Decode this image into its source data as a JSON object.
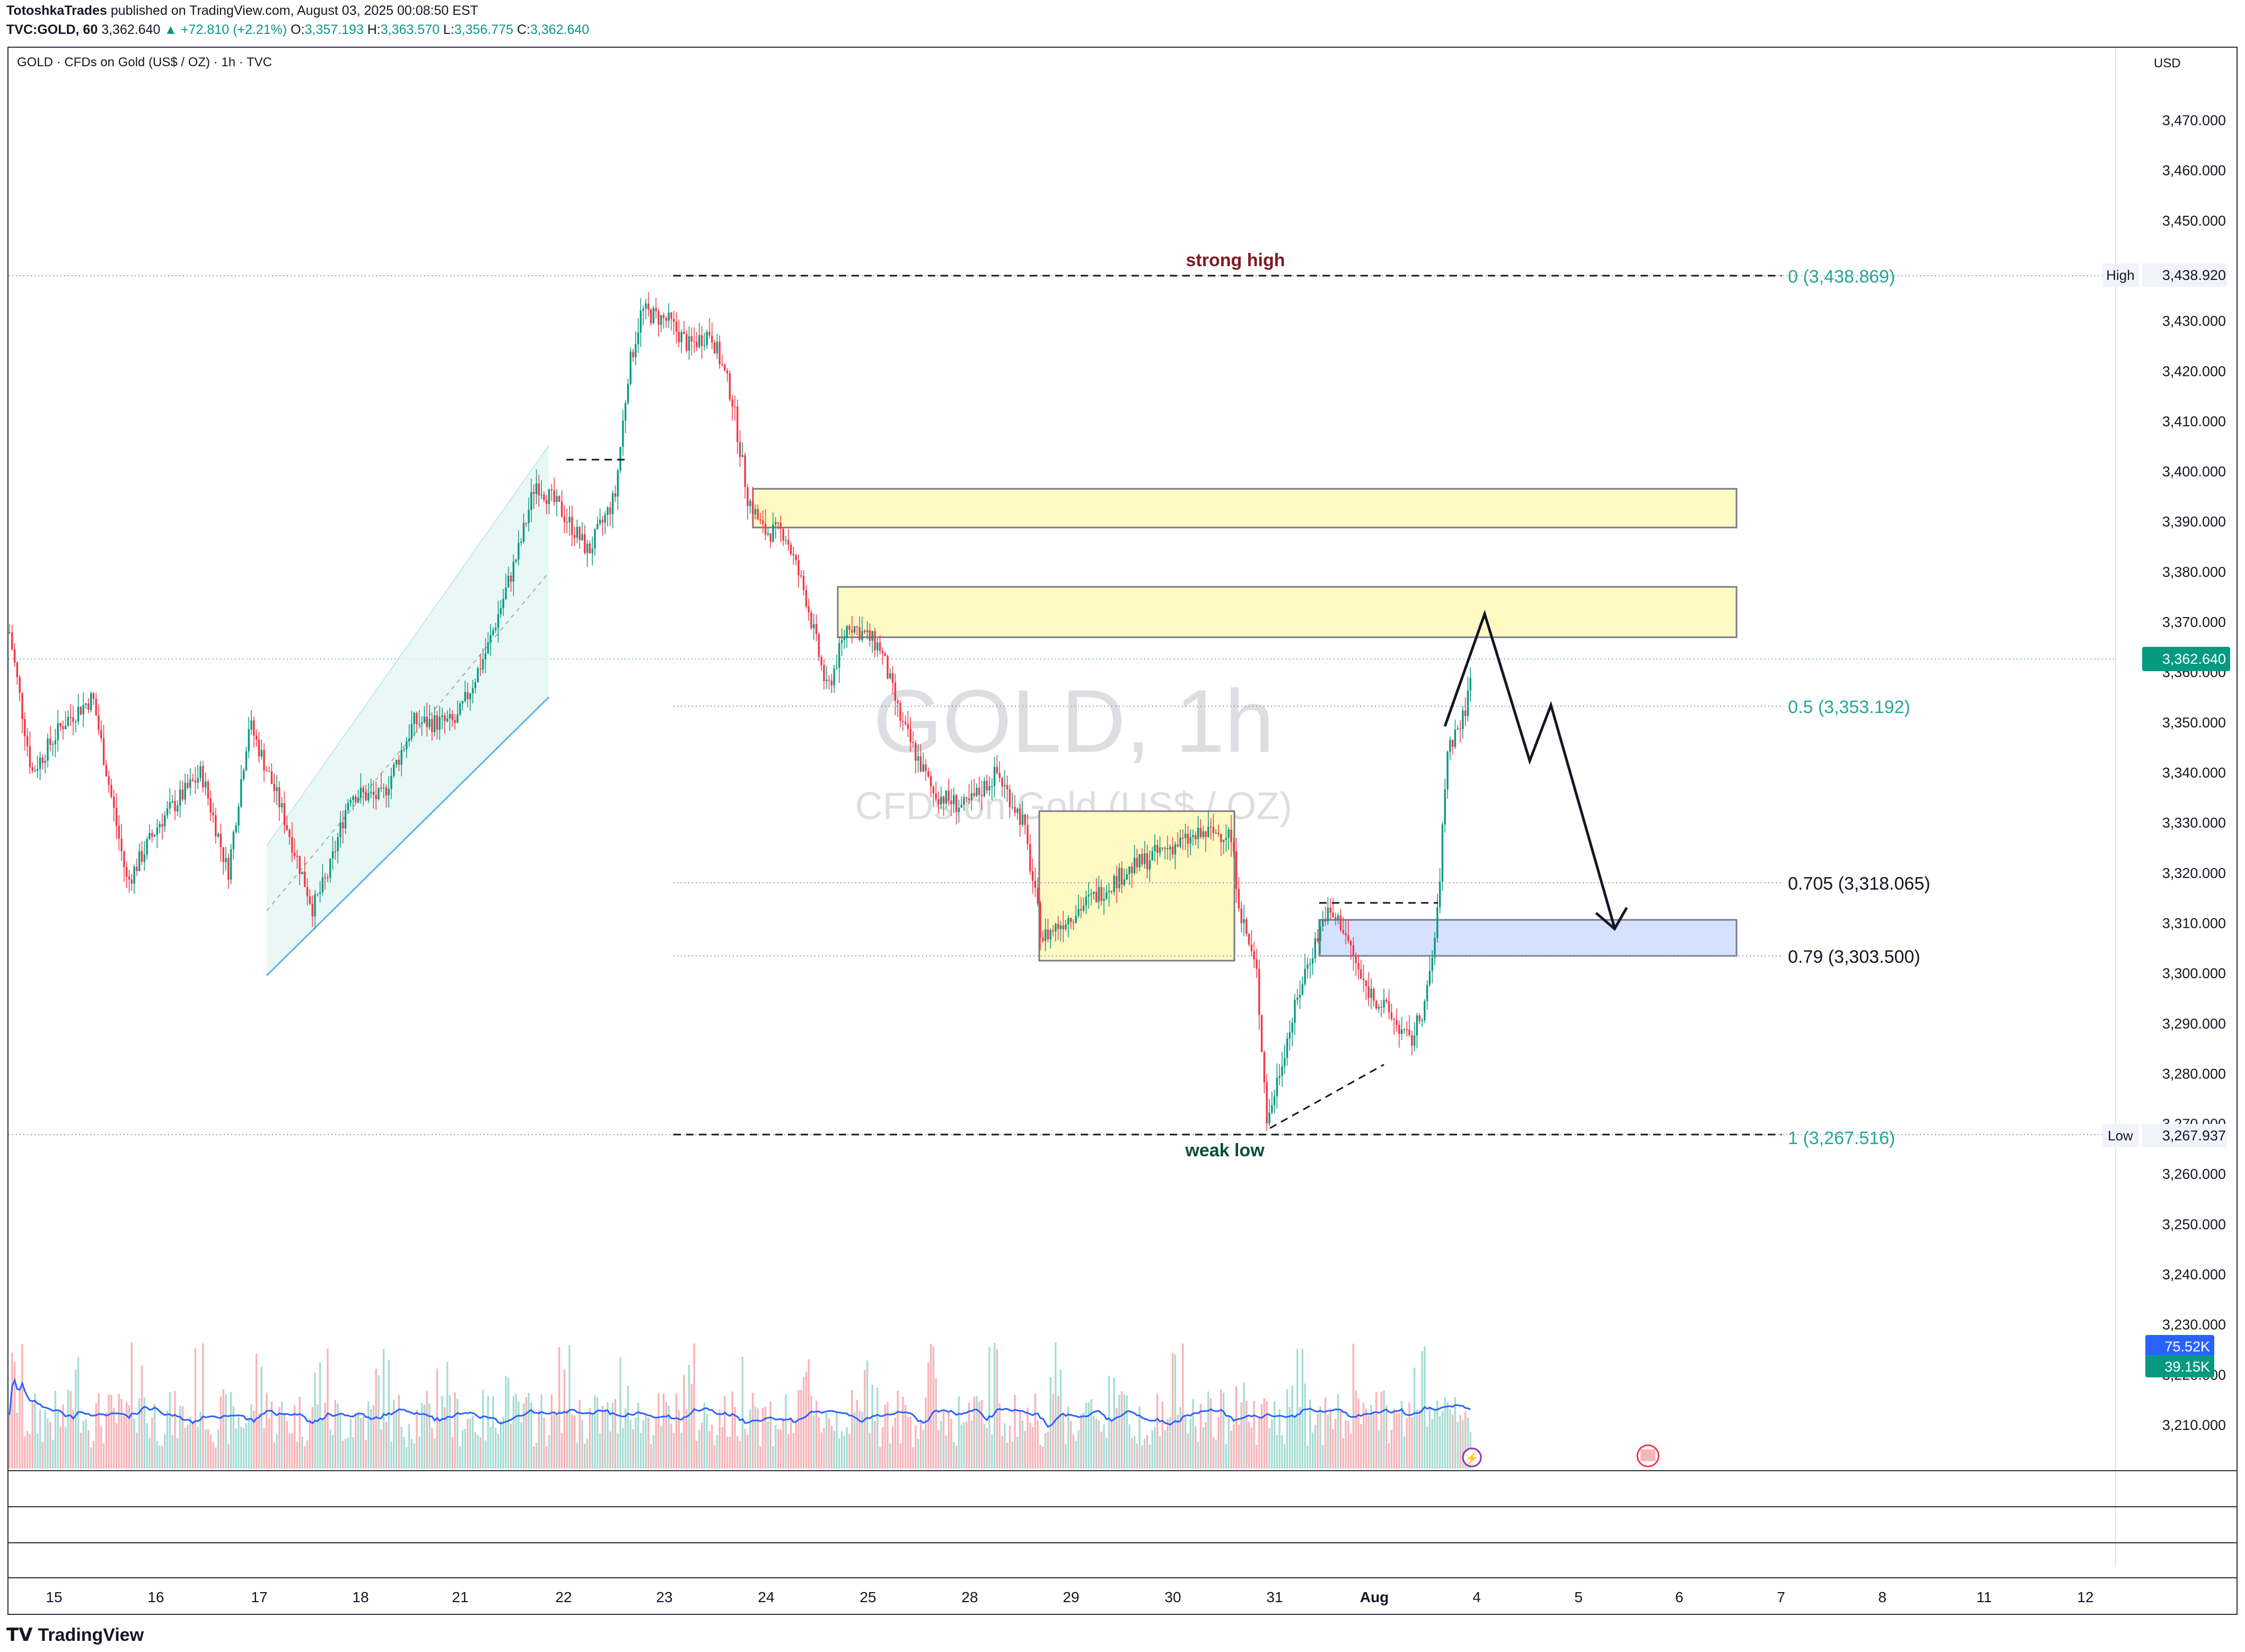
{
  "header": {
    "publisher": "TotoshkaTrades",
    "published_text": "published on TradingView.com, August 03, 2025 00:08:50 EST",
    "symbol": "TVC:GOLD, 60",
    "last": "3,362.640",
    "change": "▲ +72.810 (+2.21%)",
    "open_label": "O:",
    "open": "3,357.193",
    "high_label": "H:",
    "high": "3,363.570",
    "low_label": "L:",
    "low": "3,356.775",
    "close_label": "C:",
    "close": "3,362.640"
  },
  "chart": {
    "symbol_label": "GOLD · CFDs on Gold (US$ / OZ) · 1h · TVC",
    "currency": "USD",
    "watermark_title": "GOLD, 1h",
    "watermark_subtitle": "CFDs on Gold (US$ / OZ)",
    "price_ticks": [
      "3,470.000",
      "3,460.000",
      "3,450.000",
      "3,430.000",
      "3,420.000",
      "3,410.000",
      "3,400.000",
      "3,390.000",
      "3,380.000",
      "3,370.000",
      "3,360.000",
      "3,350.000",
      "3,340.000",
      "3,330.000",
      "3,320.000",
      "3,310.000",
      "3,300.000",
      "3,290.000",
      "3,280.000",
      "3,270.000",
      "3,260.000",
      "3,250.000",
      "3,240.000",
      "3,230.000",
      "3,220.000",
      "3,210.000"
    ],
    "time_ticks": [
      "15",
      "16",
      "17",
      "18",
      "21",
      "22",
      "23",
      "24",
      "25",
      "28",
      "29",
      "30",
      "31",
      "Aug",
      "4",
      "5",
      "6",
      "7",
      "8",
      "11",
      "12"
    ],
    "badges": {
      "high_tag": "High",
      "high_value": "3,438.920",
      "low_tag": "Low",
      "low_value": "3,267.937",
      "last_price": "3,362.640",
      "volume_ma": "75.52K",
      "volume": "39.15K"
    },
    "annotations": {
      "strong_high": "strong high",
      "weak_low": "weak low",
      "fib_0": "0 (3,438.869)",
      "fib_05": "0.5 (3,353.192)",
      "fib_0705": "0.705 (3,318.065)",
      "fib_079": "0.79 (3,303.500)",
      "fib_1": "1 (3,267.516)"
    },
    "colors": {
      "up": "#089981",
      "down": "#f23645",
      "supply_zone": "#fff9c4",
      "demand_zone": "#d6e0ff",
      "channel": "#e0f5f1",
      "channel_line": "#5ab3e6",
      "volume_ma": "#2962ff",
      "strong_high": "#801922",
      "weak_low": "#0b4d3e",
      "fib_green": "#26a69a"
    }
  },
  "footer": {
    "brand": "TradingView"
  }
}
